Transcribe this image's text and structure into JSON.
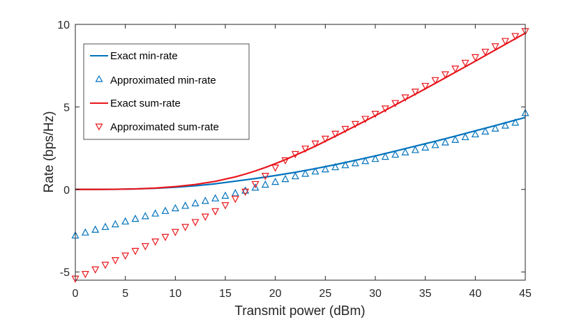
{
  "chart_data": {
    "type": "line",
    "title": "",
    "xlabel": "Transmit power (dBm)",
    "ylabel": "Rate (bps/Hz)",
    "xlim": [
      0,
      45
    ],
    "ylim": [
      -5.5,
      10
    ],
    "x_ticks": [
      0,
      5,
      10,
      15,
      20,
      25,
      30,
      35,
      40,
      45
    ],
    "y_ticks": [
      -5,
      0,
      5,
      10
    ],
    "x_tick_labels": [
      "0",
      "5",
      "10",
      "15",
      "20",
      "25",
      "30",
      "35",
      "40",
      "45"
    ],
    "y_tick_labels": [
      "-5",
      "0",
      "5",
      "10"
    ],
    "legend_position": "top-left",
    "series": [
      {
        "name": "Exact min-rate",
        "style": "line",
        "color": "#0072BD",
        "x": [
          0,
          2,
          4,
          6,
          8,
          10,
          12,
          14,
          16,
          17,
          18,
          19,
          20,
          21,
          22,
          23,
          24,
          25,
          26,
          28,
          30,
          32,
          34,
          36,
          38,
          40,
          42,
          44,
          45
        ],
        "y": [
          0.0,
          0.0,
          0.01,
          0.03,
          0.07,
          0.13,
          0.22,
          0.34,
          0.5,
          0.58,
          0.66,
          0.75,
          0.84,
          0.94,
          1.04,
          1.15,
          1.26,
          1.38,
          1.5,
          1.76,
          2.03,
          2.32,
          2.62,
          2.92,
          3.23,
          3.55,
          3.87,
          4.2,
          4.36
        ]
      },
      {
        "name": "Approximated min-rate",
        "style": "marker-up-triangle",
        "color": "#0072BD",
        "x": [
          0,
          1,
          2,
          3,
          4,
          5,
          6,
          7,
          8,
          9,
          10,
          11,
          12,
          13,
          14,
          15,
          16,
          17,
          18,
          19,
          20,
          21,
          22,
          23,
          24,
          25,
          26,
          27,
          28,
          29,
          30,
          31,
          32,
          33,
          34,
          35,
          36,
          37,
          38,
          39,
          40,
          41,
          42,
          43,
          44,
          45
        ],
        "y": [
          -2.8,
          -2.62,
          -2.45,
          -2.28,
          -2.12,
          -1.95,
          -1.79,
          -1.63,
          -1.47,
          -1.31,
          -1.15,
          -1.0,
          -0.85,
          -0.7,
          -0.55,
          -0.39,
          -0.24,
          -0.08,
          0.1,
          0.28,
          0.45,
          0.62,
          0.79,
          0.94,
          1.08,
          1.21,
          1.34,
          1.46,
          1.58,
          1.71,
          1.84,
          1.97,
          2.1,
          2.24,
          2.38,
          2.53,
          2.68,
          2.84,
          3.0,
          3.16,
          3.33,
          3.5,
          3.68,
          3.86,
          4.04,
          4.62
        ]
      },
      {
        "name": "Exact sum-rate",
        "style": "line",
        "color": "#E8161B",
        "x": [
          0,
          2,
          4,
          6,
          8,
          10,
          12,
          14,
          16,
          17,
          18,
          19,
          20,
          21,
          22,
          23,
          24,
          25,
          26,
          28,
          30,
          32,
          34,
          36,
          38,
          40,
          42,
          44,
          45
        ],
        "y": [
          0.0,
          0.0,
          0.01,
          0.03,
          0.08,
          0.17,
          0.3,
          0.49,
          0.76,
          0.93,
          1.12,
          1.33,
          1.56,
          1.8,
          2.07,
          2.34,
          2.62,
          2.92,
          3.22,
          3.84,
          4.47,
          5.12,
          5.77,
          6.43,
          7.1,
          7.77,
          8.45,
          9.13,
          9.47
        ]
      },
      {
        "name": "Approximated sum-rate",
        "style": "marker-down-triangle",
        "color": "#E8161B",
        "x": [
          0,
          1,
          2,
          3,
          4,
          5,
          6,
          7,
          8,
          9,
          10,
          11,
          12,
          13,
          14,
          15,
          16,
          17,
          18,
          19,
          20,
          21,
          22,
          23,
          24,
          25,
          26,
          27,
          28,
          29,
          30,
          31,
          32,
          33,
          34,
          35,
          36,
          37,
          38,
          39,
          40,
          41,
          42,
          43,
          44,
          45
        ],
        "y": [
          -5.4,
          -5.12,
          -4.84,
          -4.56,
          -4.28,
          -4.0,
          -3.72,
          -3.43,
          -3.15,
          -2.87,
          -2.57,
          -2.27,
          -1.97,
          -1.64,
          -1.31,
          -0.95,
          -0.56,
          -0.13,
          0.33,
          0.83,
          1.33,
          1.77,
          2.15,
          2.48,
          2.79,
          3.08,
          3.38,
          3.67,
          3.97,
          4.28,
          4.59,
          4.91,
          5.24,
          5.58,
          5.93,
          6.28,
          6.63,
          6.98,
          7.33,
          7.68,
          8.02,
          8.35,
          8.68,
          9.0,
          9.3,
          9.6
        ]
      }
    ]
  }
}
